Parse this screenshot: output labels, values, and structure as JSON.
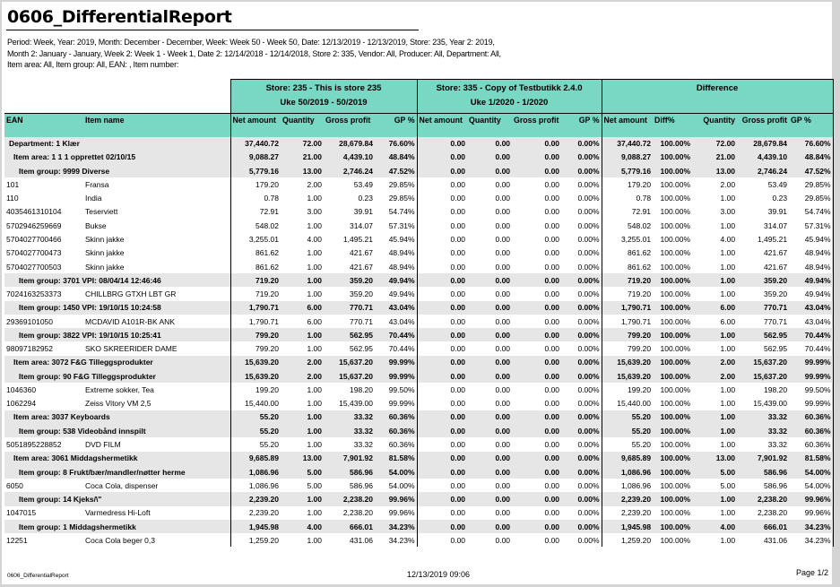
{
  "report": {
    "title": "0606_DifferentialReport",
    "params": "Period: Week, Year: 2019, Month: December - December, Week: Week 50 - Week 50, Date: 12/13/2019 - 12/13/2019, Store: 235, Year 2: 2019, Month 2: January - January, Week 2: Week 1 - Week 1, Date 2: 12/14/2018 - 12/14/2018, Store 2: 335, Vendor: All, Producer: All, Department: All, Item area: All, Item group: All, EAN: , Item number:"
  },
  "header": {
    "store1": "Store: 235 - This is store 235",
    "store1_period": "Uke 50/2019 - 50/2019",
    "store2": "Store: 335 - Copy of Testbutikk 2.4.0",
    "store2_period": "Uke 1/2020 - 1/2020",
    "difference": "Difference"
  },
  "columns": {
    "ean": "EAN",
    "item_name": "Item name",
    "net": "Net amount",
    "qty": "Quantity",
    "gross": "Gross profit",
    "gp": "GP %",
    "diff_pct": "Diff%"
  },
  "colors": {
    "header_bg": "#78d8c4",
    "group_bg": "#e6e6e6"
  },
  "rows": [
    {
      "type": "group",
      "level": 0,
      "label": "Department: 1 Klær",
      "s1": [
        "37,440.72",
        "72.00",
        "28,679.84",
        "76.60%"
      ],
      "s2": [
        "0.00",
        "0.00",
        "0.00",
        "0.00%"
      ],
      "diff": [
        "37,440.72",
        "100.00%",
        "72.00",
        "28,679.84",
        "76.60%"
      ]
    },
    {
      "type": "group",
      "level": 1,
      "label": "Item area: 1 1 1 opprettet 02/10/15",
      "s1": [
        "9,088.27",
        "21.00",
        "4,439.10",
        "48.84%"
      ],
      "s2": [
        "0.00",
        "0.00",
        "0.00",
        "0.00%"
      ],
      "diff": [
        "9,088.27",
        "100.00%",
        "21.00",
        "4,439.10",
        "48.84%"
      ]
    },
    {
      "type": "group",
      "level": 2,
      "label": "Item group: 9999 Diverse",
      "s1": [
        "5,779.16",
        "13.00",
        "2,746.24",
        "47.52%"
      ],
      "s2": [
        "0.00",
        "0.00",
        "0.00",
        "0.00%"
      ],
      "diff": [
        "5,779.16",
        "100.00%",
        "13.00",
        "2,746.24",
        "47.52%"
      ]
    },
    {
      "type": "item",
      "ean": "101",
      "name": "Fransa",
      "s1": [
        "179.20",
        "2.00",
        "53.49",
        "29.85%"
      ],
      "s2": [
        "0.00",
        "0.00",
        "0.00",
        "0.00%"
      ],
      "diff": [
        "179.20",
        "100.00%",
        "2.00",
        "53.49",
        "29.85%"
      ]
    },
    {
      "type": "item",
      "ean": "110",
      "name": "India",
      "s1": [
        "0.78",
        "1.00",
        "0.23",
        "29.85%"
      ],
      "s2": [
        "0.00",
        "0.00",
        "0.00",
        "0.00%"
      ],
      "diff": [
        "0.78",
        "100.00%",
        "1.00",
        "0.23",
        "29.85%"
      ]
    },
    {
      "type": "item",
      "ean": "4035461310104",
      "name": "Teserviett",
      "s1": [
        "72.91",
        "3.00",
        "39.91",
        "54.74%"
      ],
      "s2": [
        "0.00",
        "0.00",
        "0.00",
        "0.00%"
      ],
      "diff": [
        "72.91",
        "100.00%",
        "3.00",
        "39.91",
        "54.74%"
      ]
    },
    {
      "type": "item",
      "ean": "5702946259669",
      "name": "Bukse",
      "s1": [
        "548.02",
        "1.00",
        "314.07",
        "57.31%"
      ],
      "s2": [
        "0.00",
        "0.00",
        "0.00",
        "0.00%"
      ],
      "diff": [
        "548.02",
        "100.00%",
        "1.00",
        "314.07",
        "57.31%"
      ]
    },
    {
      "type": "item",
      "ean": "5704027700466",
      "name": "Skinn jakke",
      "s1": [
        "3,255.01",
        "4.00",
        "1,495.21",
        "45.94%"
      ],
      "s2": [
        "0.00",
        "0.00",
        "0.00",
        "0.00%"
      ],
      "diff": [
        "3,255.01",
        "100.00%",
        "4.00",
        "1,495.21",
        "45.94%"
      ]
    },
    {
      "type": "item",
      "ean": "5704027700473",
      "name": "Skinn jakke",
      "s1": [
        "861.62",
        "1.00",
        "421.67",
        "48.94%"
      ],
      "s2": [
        "0.00",
        "0.00",
        "0.00",
        "0.00%"
      ],
      "diff": [
        "861.62",
        "100.00%",
        "1.00",
        "421.67",
        "48.94%"
      ]
    },
    {
      "type": "item",
      "ean": "5704027700503",
      "name": "Skinn jakke",
      "s1": [
        "861.62",
        "1.00",
        "421.67",
        "48.94%"
      ],
      "s2": [
        "0.00",
        "0.00",
        "0.00",
        "0.00%"
      ],
      "diff": [
        "861.62",
        "100.00%",
        "1.00",
        "421.67",
        "48.94%"
      ]
    },
    {
      "type": "group",
      "level": 2,
      "label": "Item group: 3701 VPI: 08/04/14 12:46:46",
      "s1": [
        "719.20",
        "1.00",
        "359.20",
        "49.94%"
      ],
      "s2": [
        "0.00",
        "0.00",
        "0.00",
        "0.00%"
      ],
      "diff": [
        "719.20",
        "100.00%",
        "1.00",
        "359.20",
        "49.94%"
      ]
    },
    {
      "type": "item",
      "ean": "7024163253373",
      "name": "CHILLBRG GTXH LBT GR",
      "s1": [
        "719.20",
        "1.00",
        "359.20",
        "49.94%"
      ],
      "s2": [
        "0.00",
        "0.00",
        "0.00",
        "0.00%"
      ],
      "diff": [
        "719.20",
        "100.00%",
        "1.00",
        "359.20",
        "49.94%"
      ]
    },
    {
      "type": "group",
      "level": 2,
      "label": "Item group: 1450 VPI: 19/10/15 10:24:58",
      "s1": [
        "1,790.71",
        "6.00",
        "770.71",
        "43.04%"
      ],
      "s2": [
        "0.00",
        "0.00",
        "0.00",
        "0.00%"
      ],
      "diff": [
        "1,790.71",
        "100.00%",
        "6.00",
        "770.71",
        "43.04%"
      ]
    },
    {
      "type": "item",
      "ean": "29369101050",
      "name": "MCDAVID A101R-BK ANK",
      "s1": [
        "1,790.71",
        "6.00",
        "770.71",
        "43.04%"
      ],
      "s2": [
        "0.00",
        "0.00",
        "0.00",
        "0.00%"
      ],
      "diff": [
        "1,790.71",
        "100.00%",
        "6.00",
        "770.71",
        "43.04%"
      ]
    },
    {
      "type": "group",
      "level": 2,
      "label": "Item group: 3822 VPI: 19/10/15 10:25:41",
      "s1": [
        "799.20",
        "1.00",
        "562.95",
        "70.44%"
      ],
      "s2": [
        "0.00",
        "0.00",
        "0.00",
        "0.00%"
      ],
      "diff": [
        "799.20",
        "100.00%",
        "1.00",
        "562.95",
        "70.44%"
      ]
    },
    {
      "type": "item",
      "ean": "98097182952",
      "name": "SKO SKREERIDER DAME",
      "s1": [
        "799.20",
        "1.00",
        "562.95",
        "70.44%"
      ],
      "s2": [
        "0.00",
        "0.00",
        "0.00",
        "0.00%"
      ],
      "diff": [
        "799.20",
        "100.00%",
        "1.00",
        "562.95",
        "70.44%"
      ]
    },
    {
      "type": "group",
      "level": 1,
      "label": "Item area: 3072 F&G Tilleggsprodukter",
      "s1": [
        "15,639.20",
        "2.00",
        "15,637.20",
        "99.99%"
      ],
      "s2": [
        "0.00",
        "0.00",
        "0.00",
        "0.00%"
      ],
      "diff": [
        "15,639.20",
        "100.00%",
        "2.00",
        "15,637.20",
        "99.99%"
      ]
    },
    {
      "type": "group",
      "level": 2,
      "label": "Item group: 90 F&G Tilleggsprodukter",
      "s1": [
        "15,639.20",
        "2.00",
        "15,637.20",
        "99.99%"
      ],
      "s2": [
        "0.00",
        "0.00",
        "0.00",
        "0.00%"
      ],
      "diff": [
        "15,639.20",
        "100.00%",
        "2.00",
        "15,637.20",
        "99.99%"
      ]
    },
    {
      "type": "item",
      "ean": "1046360",
      "name": "Extreme sokker, Tea",
      "s1": [
        "199.20",
        "1.00",
        "198.20",
        "99.50%"
      ],
      "s2": [
        "0.00",
        "0.00",
        "0.00",
        "0.00%"
      ],
      "diff": [
        "199.20",
        "100.00%",
        "1.00",
        "198.20",
        "99.50%"
      ]
    },
    {
      "type": "item",
      "ean": "1062294",
      "name": "Zeiss Vitory VM 2,5",
      "s1": [
        "15,440.00",
        "1.00",
        "15,439.00",
        "99.99%"
      ],
      "s2": [
        "0.00",
        "0.00",
        "0.00",
        "0.00%"
      ],
      "diff": [
        "15,440.00",
        "100.00%",
        "1.00",
        "15,439.00",
        "99.99%"
      ]
    },
    {
      "type": "group",
      "level": 1,
      "label": "Item area: 3037 Keyboards",
      "s1": [
        "55.20",
        "1.00",
        "33.32",
        "60.36%"
      ],
      "s2": [
        "0.00",
        "0.00",
        "0.00",
        "0.00%"
      ],
      "diff": [
        "55.20",
        "100.00%",
        "1.00",
        "33.32",
        "60.36%"
      ]
    },
    {
      "type": "group",
      "level": 2,
      "label": "Item group: 538 Videobånd innspilt",
      "s1": [
        "55.20",
        "1.00",
        "33.32",
        "60.36%"
      ],
      "s2": [
        "0.00",
        "0.00",
        "0.00",
        "0.00%"
      ],
      "diff": [
        "55.20",
        "100.00%",
        "1.00",
        "33.32",
        "60.36%"
      ]
    },
    {
      "type": "item",
      "ean": "5051895228852",
      "name": "DVD FILM",
      "s1": [
        "55.20",
        "1.00",
        "33.32",
        "60.36%"
      ],
      "s2": [
        "0.00",
        "0.00",
        "0.00",
        "0.00%"
      ],
      "diff": [
        "55.20",
        "100.00%",
        "1.00",
        "33.32",
        "60.36%"
      ]
    },
    {
      "type": "group",
      "level": 1,
      "label": "Item area: 3061 Middagshermetikk",
      "s1": [
        "9,685.89",
        "13.00",
        "7,901.92",
        "81.58%"
      ],
      "s2": [
        "0.00",
        "0.00",
        "0.00",
        "0.00%"
      ],
      "diff": [
        "9,685.89",
        "100.00%",
        "13.00",
        "7,901.92",
        "81.58%"
      ]
    },
    {
      "type": "group",
      "level": 2,
      "label": "Item group: 8 Frukt/bær/mandler/nøtter herme",
      "s1": [
        "1,086.96",
        "5.00",
        "586.96",
        "54.00%"
      ],
      "s2": [
        "0.00",
        "0.00",
        "0.00",
        "0.00%"
      ],
      "diff": [
        "1,086.96",
        "100.00%",
        "5.00",
        "586.96",
        "54.00%"
      ]
    },
    {
      "type": "item",
      "ean": "6050",
      "name": "Coca Cola, dispenser",
      "s1": [
        "1,086.96",
        "5.00",
        "586.96",
        "54.00%"
      ],
      "s2": [
        "0.00",
        "0.00",
        "0.00",
        "0.00%"
      ],
      "diff": [
        "1,086.96",
        "100.00%",
        "5.00",
        "586.96",
        "54.00%"
      ]
    },
    {
      "type": "group",
      "level": 2,
      "label": "Item group: 14 Kjeks/\\\"",
      "s1": [
        "2,239.20",
        "1.00",
        "2,238.20",
        "99.96%"
      ],
      "s2": [
        "0.00",
        "0.00",
        "0.00",
        "0.00%"
      ],
      "diff": [
        "2,239.20",
        "100.00%",
        "1.00",
        "2,238.20",
        "99.96%"
      ]
    },
    {
      "type": "item",
      "ean": "1047015",
      "name": "Varmedress Hi-Loft",
      "s1": [
        "2,239.20",
        "1.00",
        "2,238.20",
        "99.96%"
      ],
      "s2": [
        "0.00",
        "0.00",
        "0.00",
        "0.00%"
      ],
      "diff": [
        "2,239.20",
        "100.00%",
        "1.00",
        "2,238.20",
        "99.96%"
      ]
    },
    {
      "type": "group",
      "level": 2,
      "label": "Item group: 1 Middagshermetikk",
      "s1": [
        "1,945.98",
        "4.00",
        "666.01",
        "34.23%"
      ],
      "s2": [
        "0.00",
        "0.00",
        "0.00",
        "0.00%"
      ],
      "diff": [
        "1,945.98",
        "100.00%",
        "4.00",
        "666.01",
        "34.23%"
      ]
    },
    {
      "type": "item",
      "ean": "12251",
      "name": "Coca Cola beger 0,3",
      "s1": [
        "1,259.20",
        "1.00",
        "431.06",
        "34.23%"
      ],
      "s2": [
        "0.00",
        "0.00",
        "0.00",
        "0.00%"
      ],
      "diff": [
        "1,259.20",
        "100.00%",
        "1.00",
        "431.06",
        "34.23%"
      ]
    }
  ],
  "footer": {
    "report_name": "0606_DifferentialReport",
    "timestamp": "12/13/2019 09:06",
    "page": "Page 1/2"
  }
}
